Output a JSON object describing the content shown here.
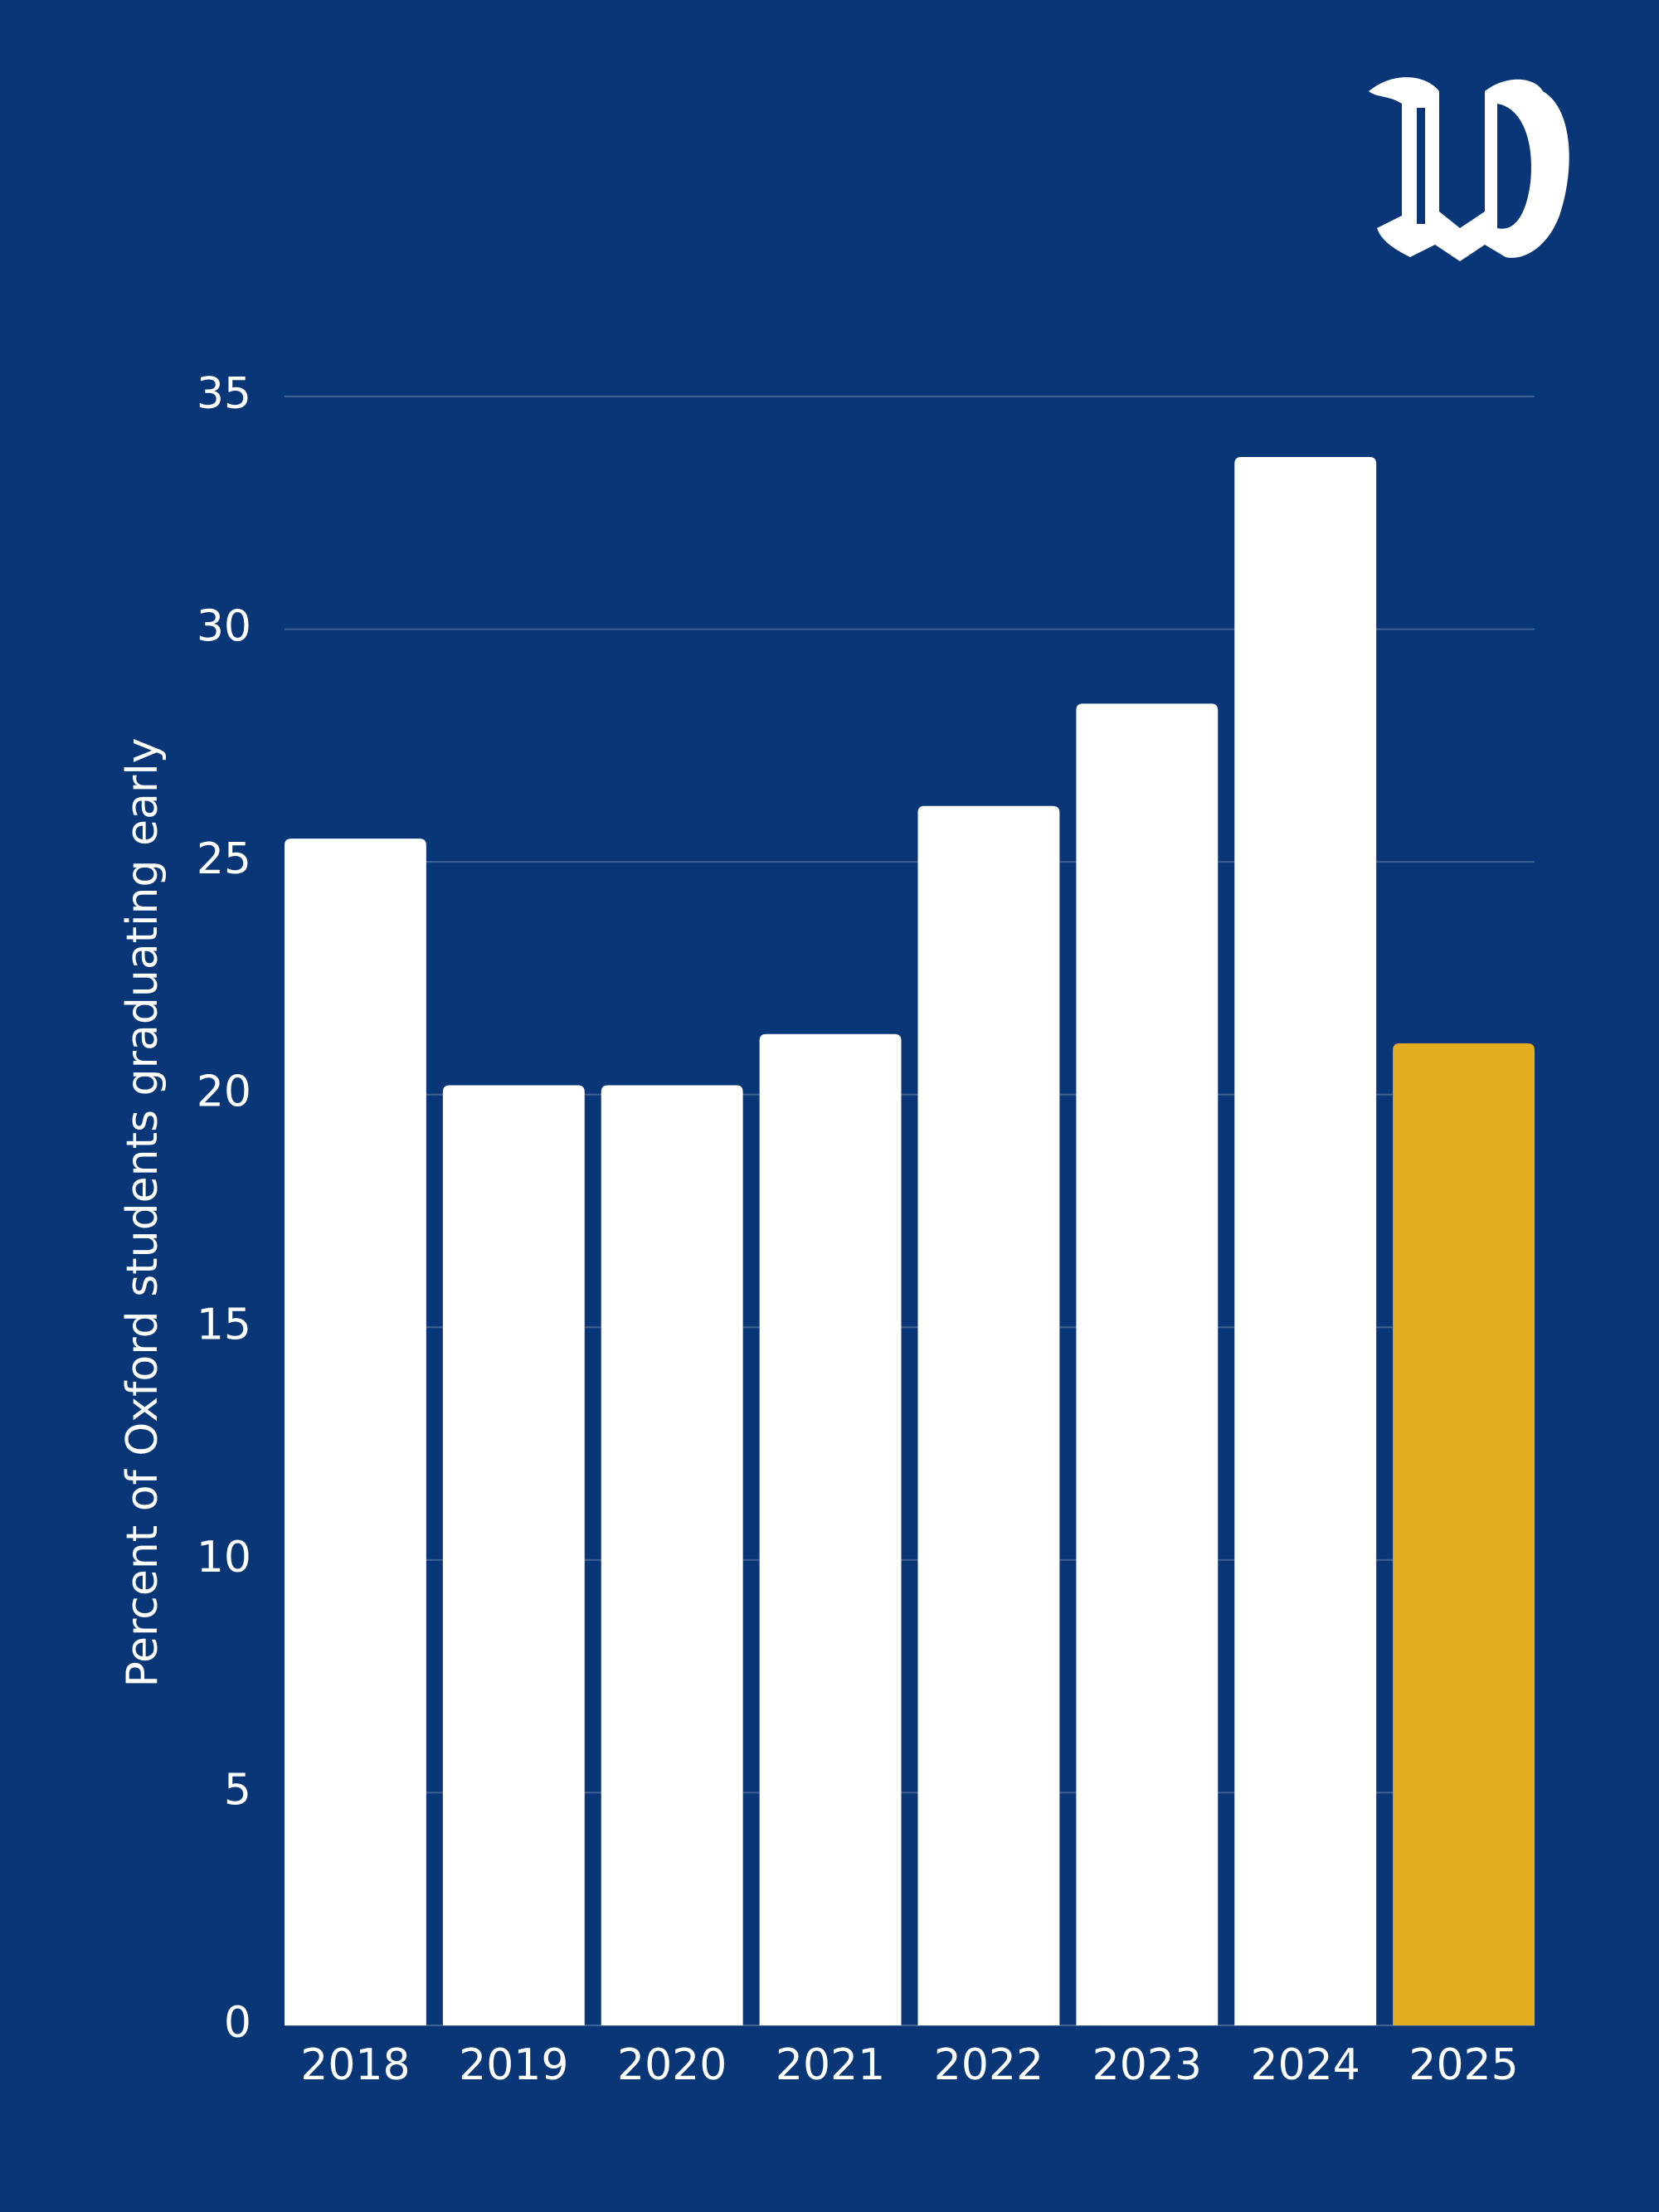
{
  "chart_data": {
    "type": "bar",
    "y_label": "Percent of Oxford students graduating early",
    "categories": [
      "2018",
      "2019",
      "2020",
      "2021",
      "2022",
      "2023",
      "2024",
      "2025"
    ],
    "values": [
      25.5,
      20.2,
      20.2,
      21.3,
      26.2,
      28.4,
      33.7,
      21.1
    ],
    "colors": [
      "#ffffff",
      "#ffffff",
      "#ffffff",
      "#ffffff",
      "#ffffff",
      "#ffffff",
      "#ffffff",
      "#e3ae22"
    ],
    "ylim": [
      0,
      35
    ],
    "yticks": [
      0,
      5,
      10,
      15,
      20,
      25,
      30,
      35
    ],
    "grid": true
  }
}
